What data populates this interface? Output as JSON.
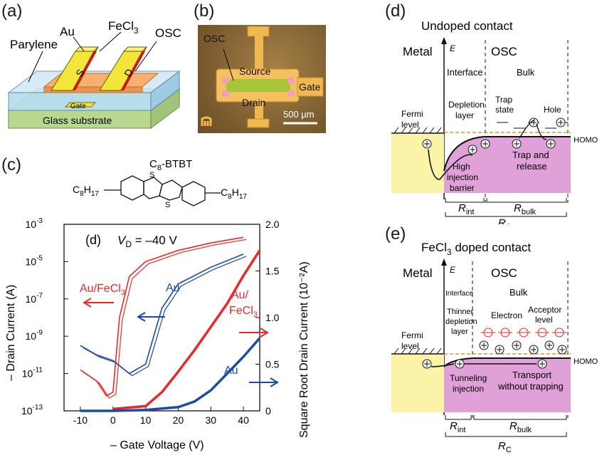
{
  "labels": {
    "a": "(a)",
    "b": "(b)",
    "c": "(c)",
    "d": "(d)",
    "e": "(e)"
  },
  "panel_a": {
    "au": "Au",
    "fecl3": "FeCl",
    "fecl3_sub": "3",
    "osc": "OSC",
    "parylene": "Parylene",
    "s": "S",
    "d": "D",
    "gate": "Gate",
    "substrate": "Glass substrate"
  },
  "panel_b": {
    "osc": "OSC",
    "source": "Source",
    "drain": "Drain",
    "gate": "Gate",
    "scale": "500 µm"
  },
  "panel_c": {
    "molecule": "C",
    "molecule_sub": "8",
    "molecule_rest": "-BTBT",
    "left_group": "C",
    "left_sub1": "8",
    "left_h": "H",
    "left_sub2": "17",
    "right_group": "C",
    "right_sub1": "8",
    "right_h": "H",
    "right_sub2": "17",
    "sulfur": "S"
  },
  "colors": {
    "red": "#e62a2a",
    "blue": "#1d4ba0",
    "pink": "#e0a0d8",
    "yellow": "#fbf4a8",
    "orange": "#e07b1a"
  },
  "chart_data": {
    "type": "line",
    "panel_label": "(d)",
    "annotation_vd": "V",
    "annotation_vd_sub": "D",
    "annotation_vd_val": " =  –40 V",
    "xlabel": "– Gate Voltage (V)",
    "ylabel_left": "– Drain Current (A)",
    "ylabel_right": "Square Root Drain Current (10⁻²A)",
    "xlim": [
      -15,
      45
    ],
    "ylim_left_log": [
      -13,
      -3
    ],
    "ylim_right": [
      0,
      2.0
    ],
    "x_ticks": [
      "-10",
      "0",
      "10",
      "20",
      "30",
      "40"
    ],
    "y_left_ticks": [
      "10",
      "10",
      "10",
      "10",
      "10",
      "10"
    ],
    "y_left_exps": [
      "-3",
      "-5",
      "-7",
      "-9",
      "-11",
      "-13"
    ],
    "y_right_ticks": [
      "2.0",
      "1.5",
      "1.0",
      "0.5",
      "0"
    ],
    "labels": {
      "au_fecl3_left": "Au/FeCl",
      "au_left": "Au",
      "au_fecl3_right1": "Au/",
      "au_fecl3_right2": "FeCl",
      "au_right": "Au",
      "sub3": "3"
    },
    "series": [
      {
        "name": "Au/FeCl3",
        "color": "#e62a2a",
        "transfer_x": [
          -10,
          -5,
          -2,
          0,
          2,
          5,
          10,
          20,
          30,
          40
        ],
        "transfer_log": [
          -10.8,
          -11.4,
          -12.2,
          -12.0,
          -8.0,
          -5.8,
          -5.0,
          -4.4,
          -4.0,
          -3.7
        ],
        "sqrt_x": [
          0,
          10,
          15,
          20,
          25,
          30,
          35,
          40,
          45
        ],
        "sqrt_y": [
          0.02,
          0.05,
          0.2,
          0.42,
          0.65,
          0.9,
          1.15,
          1.45,
          1.72
        ]
      },
      {
        "name": "Au",
        "color": "#1d4ba0",
        "transfer_x": [
          -10,
          -5,
          0,
          5,
          10,
          15,
          20,
          30,
          40
        ],
        "transfer_log": [
          -9.5,
          -10.0,
          -10.3,
          -11.0,
          -10.5,
          -7.5,
          -6.2,
          -5.3,
          -4.6
        ],
        "sqrt_x": [
          -10,
          0,
          10,
          20,
          25,
          30,
          35,
          40,
          45
        ],
        "sqrt_y": [
          0.0,
          0.0,
          0.01,
          0.04,
          0.1,
          0.22,
          0.4,
          0.58,
          0.78
        ]
      }
    ]
  },
  "panel_d": {
    "title": "Undoped contact",
    "metal": "Metal",
    "e": "E",
    "osc": "OSC",
    "interface": "Interface",
    "bulk": "Bulk",
    "fermi1": "Fermi",
    "fermi2": "level",
    "depletion1": "Depletion",
    "depletion2": "layer",
    "trap1": "Trap",
    "trap2": "state",
    "hole": "Hole",
    "homo": "HOMO",
    "high1": "High",
    "high2": "injection",
    "high3": "barrier",
    "tr1": "Trap and",
    "tr2": "release",
    "rint": "R",
    "rint_sub": "int",
    "rbulk": "R",
    "rbulk_sub": "bulk",
    "rc": "R",
    "rc_sub": "C"
  },
  "panel_e": {
    "title": "FeCl",
    "title_sub": "3",
    "title_rest": " doped contact",
    "metal": "Metal",
    "e": "E",
    "osc": "OSC",
    "interface": "Interface",
    "bulk": "Bulk",
    "fermi1": "Fermi",
    "fermi2": "level",
    "thin1": "Thinner",
    "thin2": "depletion",
    "thin3": "layer",
    "electron": "Electron",
    "acc1": "Acceptor",
    "acc2": "level",
    "homo": "HOMO",
    "tun1": "Tunneling",
    "tun2": "injection",
    "tr1": "Transport",
    "tr2": "without trapping",
    "rint": "R",
    "rint_sub": "int",
    "rbulk": "R",
    "rbulk_sub": "bulk",
    "rc": "R",
    "rc_sub": "C"
  }
}
